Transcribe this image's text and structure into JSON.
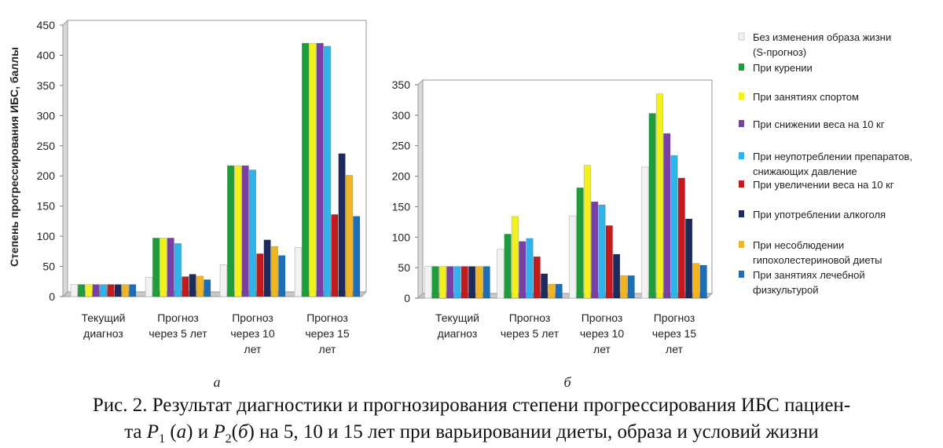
{
  "chart_data": [
    {
      "type": "bar",
      "panel_label": "а",
      "ylabel": "Степень прогрессирования ИБС, баллы",
      "ylim": [
        0,
        450
      ],
      "yticks": [
        0,
        50,
        100,
        150,
        200,
        250,
        300,
        350,
        400,
        450
      ],
      "categories": [
        [
          "Текущий",
          "диагноз"
        ],
        [
          "Прогноз",
          "через 5 лет"
        ],
        [
          "Прогноз",
          "через 10",
          "лет"
        ],
        [
          "Прогноз",
          "через 15",
          "лет"
        ]
      ],
      "series": [
        {
          "name": "Без изменения образа жизни (S-прогноз)",
          "values": [
            20,
            32,
            53,
            81
          ]
        },
        {
          "name": "При курении",
          "values": [
            20,
            97,
            217,
            420
          ]
        },
        {
          "name": "При занятиях спортом",
          "values": [
            20,
            97,
            217,
            420
          ]
        },
        {
          "name": "При снижении веса на 10 кг",
          "values": [
            20,
            97,
            217,
            420
          ]
        },
        {
          "name": "При неупотреблении препаратов, снижающих давление",
          "values": [
            20,
            88,
            210,
            415
          ]
        },
        {
          "name": "При увеличении веса на 10 кг",
          "values": [
            20,
            33,
            71,
            136
          ]
        },
        {
          "name": "При употреблении алкоголя",
          "values": [
            20,
            37,
            94,
            237
          ]
        },
        {
          "name": "При несоблюдении гипохолестериновой диеты",
          "values": [
            20,
            34,
            83,
            201
          ]
        },
        {
          "name": "При занятиях лечебной физкультурой",
          "values": [
            20,
            28,
            68,
            133
          ]
        }
      ]
    },
    {
      "type": "bar",
      "panel_label": "б",
      "ylim": [
        0,
        350
      ],
      "yticks": [
        0,
        50,
        100,
        150,
        200,
        250,
        300,
        350
      ],
      "categories": [
        [
          "Текущий",
          "диагноз"
        ],
        [
          "Прогноз",
          "через 5 лет"
        ],
        [
          "Прогноз",
          "через 10",
          "лет"
        ],
        [
          "Прогноз",
          "через 15",
          "лет"
        ]
      ],
      "series": [
        {
          "name": "Без изменения образа жизни (S-прогноз)",
          "values": [
            52,
            80,
            135,
            215
          ]
        },
        {
          "name": "При курении",
          "values": [
            52,
            105,
            181,
            303
          ]
        },
        {
          "name": "При занятиях спортом",
          "values": [
            52,
            134,
            218,
            335
          ]
        },
        {
          "name": "При снижении веса на 10 кг",
          "values": [
            52,
            93,
            158,
            270
          ]
        },
        {
          "name": "При неупотреблении препаратов, снижающих давление",
          "values": [
            52,
            98,
            153,
            234
          ]
        },
        {
          "name": "При увеличении веса на 10 кг",
          "values": [
            52,
            68,
            119,
            197
          ]
        },
        {
          "name": "При употреблении алкоголя",
          "values": [
            52,
            40,
            72,
            130
          ]
        },
        {
          "name": "При несоблюдении гипохолестериновой диеты",
          "values": [
            52,
            23,
            37,
            57
          ]
        },
        {
          "name": "При занятиях лечебной физкультурой",
          "values": [
            52,
            23,
            37,
            54
          ]
        }
      ]
    }
  ],
  "legend": {
    "items": [
      {
        "lines": [
          "Без изменения образа жизни",
          "(S-прогноз)"
        ],
        "color": "#f2f2f2"
      },
      {
        "lines": [
          "При курении"
        ],
        "color": "#1e9e3a"
      },
      {
        "lines": [
          "При занятиях спортом"
        ],
        "color": "#f2f21a"
      },
      {
        "lines": [
          "При снижении веса на 10 кг"
        ],
        "color": "#7a3fa6"
      },
      {
        "lines": [
          "При неупотреблении препаратов,",
          "снижающих давление"
        ],
        "color": "#2eb3ea"
      },
      {
        "lines": [
          "При увеличении веса на 10 кг"
        ],
        "color": "#c4191d"
      },
      {
        "lines": [
          "При употреблении алкоголя"
        ],
        "color": "#1c2a5c"
      },
      {
        "lines": [
          "При несоблюдении",
          "гипохолестериновой диеты"
        ],
        "color": "#f2b51d"
      },
      {
        "lines": [
          "При занятиях лечебной",
          "физкультурой"
        ],
        "color": "#1d6fb5"
      }
    ]
  },
  "caption": {
    "line1": "Рис. 2. Результат диагностики и прогнозирования степени прогрессирования ИБС пациен-",
    "line2_prefix": "та ",
    "p": "P",
    "sub1": "1",
    "mid1": " (",
    "a": "а",
    "mid2": ") и ",
    "sub2": "2",
    "mid3": "(",
    "b": "б",
    "line2_suffix": ") на 5, 10 и 15 лет при варьировании диеты, образа и условий жизни"
  }
}
